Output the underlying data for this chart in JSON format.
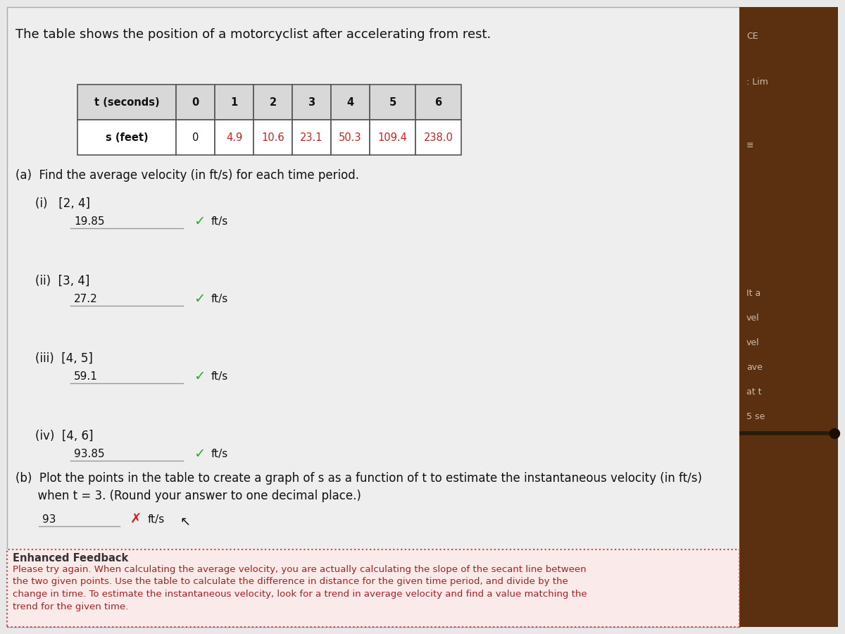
{
  "title": "The table shows the position of a motorcyclist after accelerating from rest.",
  "table_headers": [
    "t (seconds)",
    "0",
    "1",
    "2",
    "3",
    "4",
    "5",
    "6"
  ],
  "table_row2_label": "s (feet)",
  "table_row2_values": [
    "0",
    "4.9",
    "10.6",
    "23.1",
    "50.3",
    "109.4",
    "238.0"
  ],
  "part_a_label": "(a)  Find the average velocity (in ft/s) for each time period.",
  "intervals": [
    "(i)   [2, 4]",
    "(ii)  [3, 4]",
    "(iii)  [4, 5]",
    "(iv)  [4, 6]"
  ],
  "answers": [
    "19.85",
    "27.2",
    "59.1",
    "93.85"
  ],
  "part_b_label": "(b)  Plot the points in the table to create a graph of s as a function of t to estimate the instantaneous velocity (in ft/s)\n      when t = 3. (Round your answer to one decimal place.)",
  "part_b_answer": "93",
  "feedback_title": "Enhanced Feedback",
  "feedback_text": "Please try again. When calculating the average velocity, you are actually calculating the slope of the secant line between\nthe two given points. Use the table to calculate the difference in distance for the given time period, and divide by the\nchange in time. To estimate the instantaneous velocity, look for a trend in average velocity and find a value matching the\ntrend for the given time.",
  "main_bg": "#e8e8e8",
  "content_bg": "#ebebeb",
  "table_header_bg": "#5a5a5a",
  "table_header_text": "#000000",
  "table_cell_bg": "#ffffff",
  "table_border_color": "#555555",
  "red_value_color": "#cc2222",
  "black_value_color": "#111111",
  "check_color": "#2eaa2e",
  "x_color": "#cc2222",
  "feedback_border_color": "#cc4444",
  "feedback_bg_color": "#faeaea",
  "feedback_text_color": "#aa2222",
  "right_panel_bg": "#5a3010",
  "right_panel_text_color": "#ccbbaa"
}
